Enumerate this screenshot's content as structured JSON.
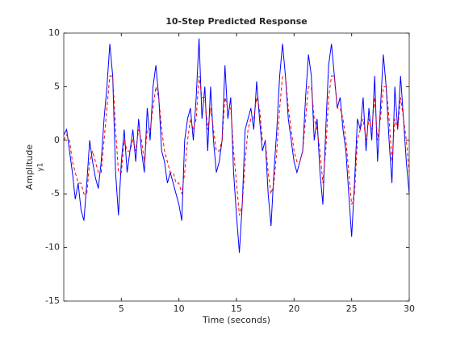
{
  "chart_data": {
    "type": "line",
    "title": "10-Step Predicted Response",
    "xlabel": "Time (seconds)",
    "ylabel": "Amplitude",
    "channel_label": "y1",
    "x": [
      0,
      0.25,
      0.5,
      0.75,
      1,
      1.25,
      1.5,
      1.75,
      2,
      2.25,
      2.5,
      2.75,
      3,
      3.25,
      3.5,
      3.75,
      4,
      4.25,
      4.5,
      4.75,
      5,
      5.25,
      5.5,
      5.75,
      6,
      6.25,
      6.5,
      6.75,
      7,
      7.25,
      7.5,
      7.75,
      8,
      8.25,
      8.5,
      8.75,
      9,
      9.25,
      9.5,
      9.75,
      10,
      10.25,
      10.5,
      10.75,
      11,
      11.25,
      11.5,
      11.75,
      12,
      12.25,
      12.5,
      12.75,
      13,
      13.25,
      13.5,
      13.75,
      14,
      14.25,
      14.5,
      14.75,
      15,
      15.25,
      15.5,
      15.75,
      16,
      16.25,
      16.5,
      16.75,
      17,
      17.25,
      17.5,
      17.75,
      18,
      18.25,
      18.5,
      18.75,
      19,
      19.25,
      19.5,
      19.75,
      20,
      20.25,
      20.5,
      20.75,
      21,
      21.25,
      21.5,
      21.75,
      22,
      22.25,
      22.5,
      22.75,
      23,
      23.25,
      23.5,
      23.75,
      24,
      24.25,
      24.5,
      24.75,
      25,
      25.25,
      25.5,
      25.75,
      26,
      26.25,
      26.5,
      26.75,
      27,
      27.25,
      27.5,
      27.75,
      28,
      28.25,
      28.5,
      28.75,
      29,
      29.25,
      29.5,
      29.75,
      30
    ],
    "series": [
      {
        "color": "#0000ff",
        "dash": "solid",
        "values": [
          0.5,
          1,
          -1,
          -3,
          -5.5,
          -4,
          -6.5,
          -7.5,
          -4,
          0,
          -2,
          -3.5,
          -4.5,
          -2,
          2,
          5,
          9,
          6,
          -3,
          -7,
          -2,
          1,
          -3,
          -1,
          1,
          -2,
          2,
          -1,
          -3,
          3,
          0,
          5,
          7,
          4,
          -1,
          -2,
          -4,
          -3,
          -4,
          -5,
          -6,
          -7.5,
          0,
          2,
          3,
          0,
          4,
          9.5,
          2,
          5,
          -1,
          5,
          0,
          -3,
          -2,
          0,
          7,
          2,
          4,
          -3,
          -7,
          -10.5,
          -6,
          1,
          2,
          3,
          1,
          5.5,
          2,
          -1,
          0,
          -5,
          -8,
          -3,
          1,
          6,
          9,
          6,
          2,
          0,
          -2,
          -3,
          -2,
          -1,
          4,
          8,
          6,
          0,
          2,
          -3,
          -6,
          1,
          7,
          9,
          6,
          3,
          4,
          1,
          -1,
          -5,
          -9,
          -4,
          2,
          1,
          4,
          -1,
          3,
          0,
          6,
          -2,
          3,
          8,
          5,
          0,
          -4,
          5,
          1,
          6,
          2,
          -2,
          -5
        ]
      },
      {
        "color": "#ff0000",
        "dash": "dashed",
        "values": [
          0,
          0.5,
          0,
          -2,
          -3,
          -4,
          -4,
          -5,
          -5,
          -2,
          -1,
          -2,
          -3,
          -3,
          0,
          3,
          6,
          6,
          1,
          -3,
          -3,
          0,
          -1,
          -1,
          0,
          -1,
          1,
          0,
          -2,
          1,
          1,
          3,
          5,
          4,
          1,
          -1,
          -2,
          -3,
          -3,
          -4,
          -4,
          -5,
          -3,
          0,
          2,
          1,
          2,
          6,
          4,
          4,
          1,
          3,
          1,
          -1,
          -1,
          0,
          4,
          3,
          3,
          -1,
          -4,
          -7,
          -6,
          -2,
          1,
          2,
          2,
          4,
          3,
          0,
          0,
          -3,
          -5,
          -4,
          -1,
          3,
          6,
          6,
          3,
          1,
          -1,
          -2,
          -2,
          -1,
          2,
          5,
          5,
          2,
          1,
          -1,
          -4,
          -1,
          4,
          6,
          6,
          3,
          3,
          2,
          0,
          -3,
          -6,
          -5,
          0,
          1,
          2,
          0,
          2,
          1,
          4,
          0,
          2,
          5,
          5,
          2,
          -2,
          2,
          1,
          4,
          2,
          0,
          -3
        ]
      }
    ],
    "xlim": [
      0,
      30
    ],
    "xticks": [
      5,
      10,
      15,
      20,
      25,
      30
    ],
    "ylim": [
      -15,
      10
    ],
    "yticks": [
      -15,
      -10,
      -5,
      0,
      5,
      10
    ],
    "grid": false
  }
}
